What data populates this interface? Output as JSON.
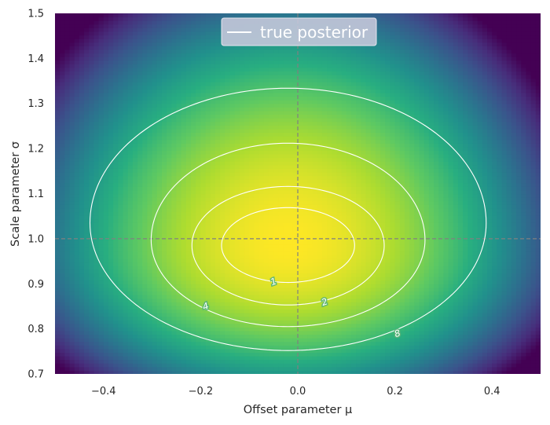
{
  "chart_data": {
    "type": "heatmap",
    "title": "",
    "xlabel": "Offset parameter μ",
    "ylabel": "Scale parameter σ",
    "xlim": [
      -0.5,
      0.5
    ],
    "ylim": [
      0.7,
      1.5
    ],
    "x_ticks": [
      "−0.4",
      "−0.2",
      "0.0",
      "0.2",
      "0.4"
    ],
    "x_tick_values": [
      -0.4,
      -0.2,
      0.0,
      0.2,
      0.4
    ],
    "y_ticks": [
      "0.7",
      "0.8",
      "0.9",
      "1.0",
      "1.1",
      "1.2",
      "1.3",
      "1.4",
      "1.5"
    ],
    "y_tick_values": [
      0.7,
      0.8,
      0.9,
      1.0,
      1.1,
      1.2,
      1.3,
      1.4,
      1.5
    ],
    "colormap": "viridis",
    "posterior_mode": {
      "mu": -0.02,
      "sigma": 0.985
    },
    "reference_lines": {
      "mu": 0.0,
      "sigma": 1.0,
      "style": "dashed",
      "color": "#808080"
    },
    "contours": [
      {
        "label": "1",
        "mu_center": -0.02,
        "sigma_center": 0.985,
        "mu_half_width": 0.137,
        "sigma_low": 0.903,
        "sigma_high": 1.069,
        "label_at": {
          "mu": -0.05,
          "sigma": 0.905
        }
      },
      {
        "label": "2",
        "mu_center": -0.02,
        "sigma_center": 0.985,
        "mu_half_width": 0.198,
        "sigma_low": 0.853,
        "sigma_high": 1.116,
        "label_at": {
          "mu": 0.055,
          "sigma": 0.86
        }
      },
      {
        "label": "4",
        "mu_center": -0.02,
        "sigma_center": 0.997,
        "mu_half_width": 0.282,
        "sigma_low": 0.805,
        "sigma_high": 1.212,
        "label_at": {
          "mu": -0.19,
          "sigma": 0.85
        }
      },
      {
        "label": "8",
        "mu_center": -0.02,
        "sigma_center": 1.035,
        "mu_half_width": 0.408,
        "sigma_low": 0.752,
        "sigma_high": 1.334,
        "label_at": {
          "mu": 0.205,
          "sigma": 0.79
        }
      }
    ],
    "contour_color": "#ffffff",
    "legend": {
      "entries": [
        "true posterior"
      ],
      "placement": "top-center",
      "line_color": "#ffffff"
    }
  }
}
